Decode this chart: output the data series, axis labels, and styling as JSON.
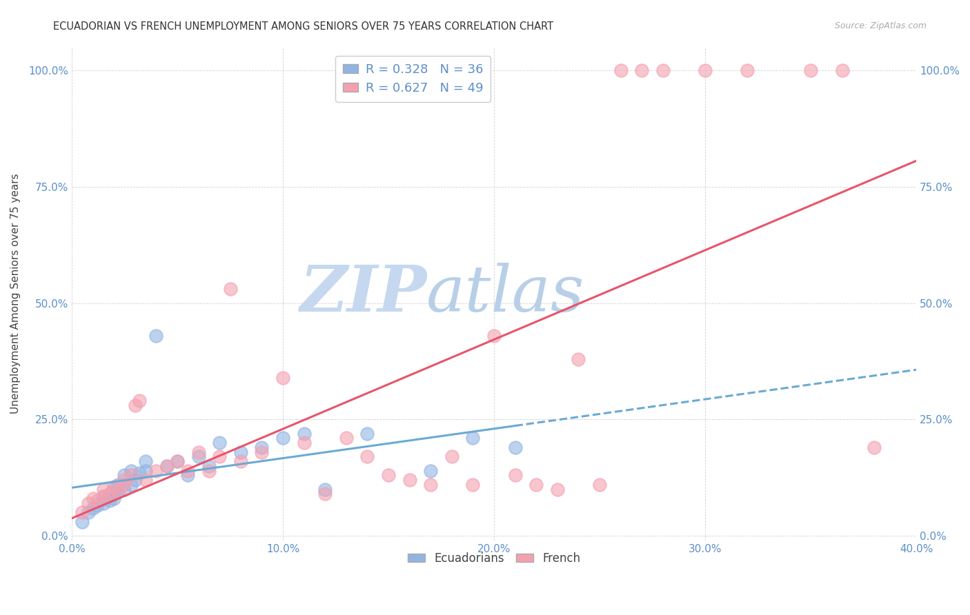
{
  "title": "ECUADORIAN VS FRENCH UNEMPLOYMENT AMONG SENIORS OVER 75 YEARS CORRELATION CHART",
  "source": "Source: ZipAtlas.com",
  "ylabel": "Unemployment Among Seniors over 75 years",
  "xlim": [
    0.0,
    40.0
  ],
  "ylim": [
    -1.0,
    105.0
  ],
  "xlabel_ticks": [
    "0.0%",
    "10.0%",
    "20.0%",
    "30.0%",
    "40.0%"
  ],
  "xlabel_vals": [
    0.0,
    10.0,
    20.0,
    30.0,
    40.0
  ],
  "ylabel_ticks": [
    "0.0%",
    "25.0%",
    "50.0%",
    "75.0%",
    "100.0%"
  ],
  "ylabel_vals": [
    0.0,
    25.0,
    50.0,
    75.0,
    100.0
  ],
  "ecu_R": 0.328,
  "ecu_N": 36,
  "fre_R": 0.627,
  "fre_N": 49,
  "ecu_color": "#92b4e3",
  "fre_color": "#f4a0b0",
  "ecu_line_color": "#6aaad4",
  "fre_line_color": "#e8546a",
  "axis_label_color": "#5b8fc9",
  "watermark_zip": "ZIP",
  "watermark_atlas": "atlas",
  "watermark_color_zip": "#c5d8ef",
  "watermark_color_atlas": "#b8cfe8",
  "ecu_x": [
    0.5,
    0.8,
    1.0,
    1.2,
    1.5,
    1.5,
    1.8,
    1.8,
    2.0,
    2.0,
    2.2,
    2.2,
    2.5,
    2.5,
    2.8,
    2.8,
    3.0,
    3.2,
    3.5,
    3.5,
    4.0,
    4.5,
    5.0,
    5.5,
    6.0,
    6.5,
    7.0,
    8.0,
    9.0,
    10.0,
    11.0,
    12.0,
    14.0,
    17.0,
    19.0,
    21.0
  ],
  "ecu_y": [
    3.0,
    5.0,
    6.0,
    6.5,
    7.0,
    8.5,
    7.5,
    9.0,
    8.0,
    10.0,
    9.5,
    11.0,
    10.0,
    13.0,
    11.0,
    14.0,
    12.0,
    13.5,
    14.0,
    16.0,
    43.0,
    15.0,
    16.0,
    13.0,
    17.0,
    15.0,
    20.0,
    18.0,
    19.0,
    21.0,
    22.0,
    10.0,
    22.0,
    14.0,
    21.0,
    19.0
  ],
  "fre_x": [
    0.5,
    0.8,
    1.0,
    1.2,
    1.5,
    1.5,
    1.8,
    2.0,
    2.2,
    2.5,
    2.5,
    2.8,
    3.0,
    3.2,
    3.5,
    4.0,
    4.5,
    5.0,
    5.5,
    6.0,
    6.5,
    7.0,
    7.5,
    8.0,
    9.0,
    10.0,
    11.0,
    12.0,
    13.0,
    14.0,
    15.0,
    16.0,
    17.0,
    18.0,
    19.0,
    20.0,
    21.0,
    22.0,
    23.0,
    24.0,
    25.0,
    26.0,
    27.0,
    28.0,
    30.0,
    32.0,
    35.0,
    36.5,
    38.0
  ],
  "fre_y": [
    5.0,
    7.0,
    8.0,
    7.5,
    8.5,
    10.0,
    9.0,
    10.5,
    9.5,
    11.0,
    12.0,
    13.0,
    28.0,
    29.0,
    12.0,
    14.0,
    15.0,
    16.0,
    14.0,
    18.0,
    14.0,
    17.0,
    53.0,
    16.0,
    18.0,
    34.0,
    20.0,
    9.0,
    21.0,
    17.0,
    13.0,
    12.0,
    11.0,
    17.0,
    11.0,
    43.0,
    13.0,
    11.0,
    10.0,
    38.0,
    11.0,
    100.0,
    100.0,
    100.0,
    100.0,
    100.0,
    100.0,
    100.0,
    19.0
  ]
}
